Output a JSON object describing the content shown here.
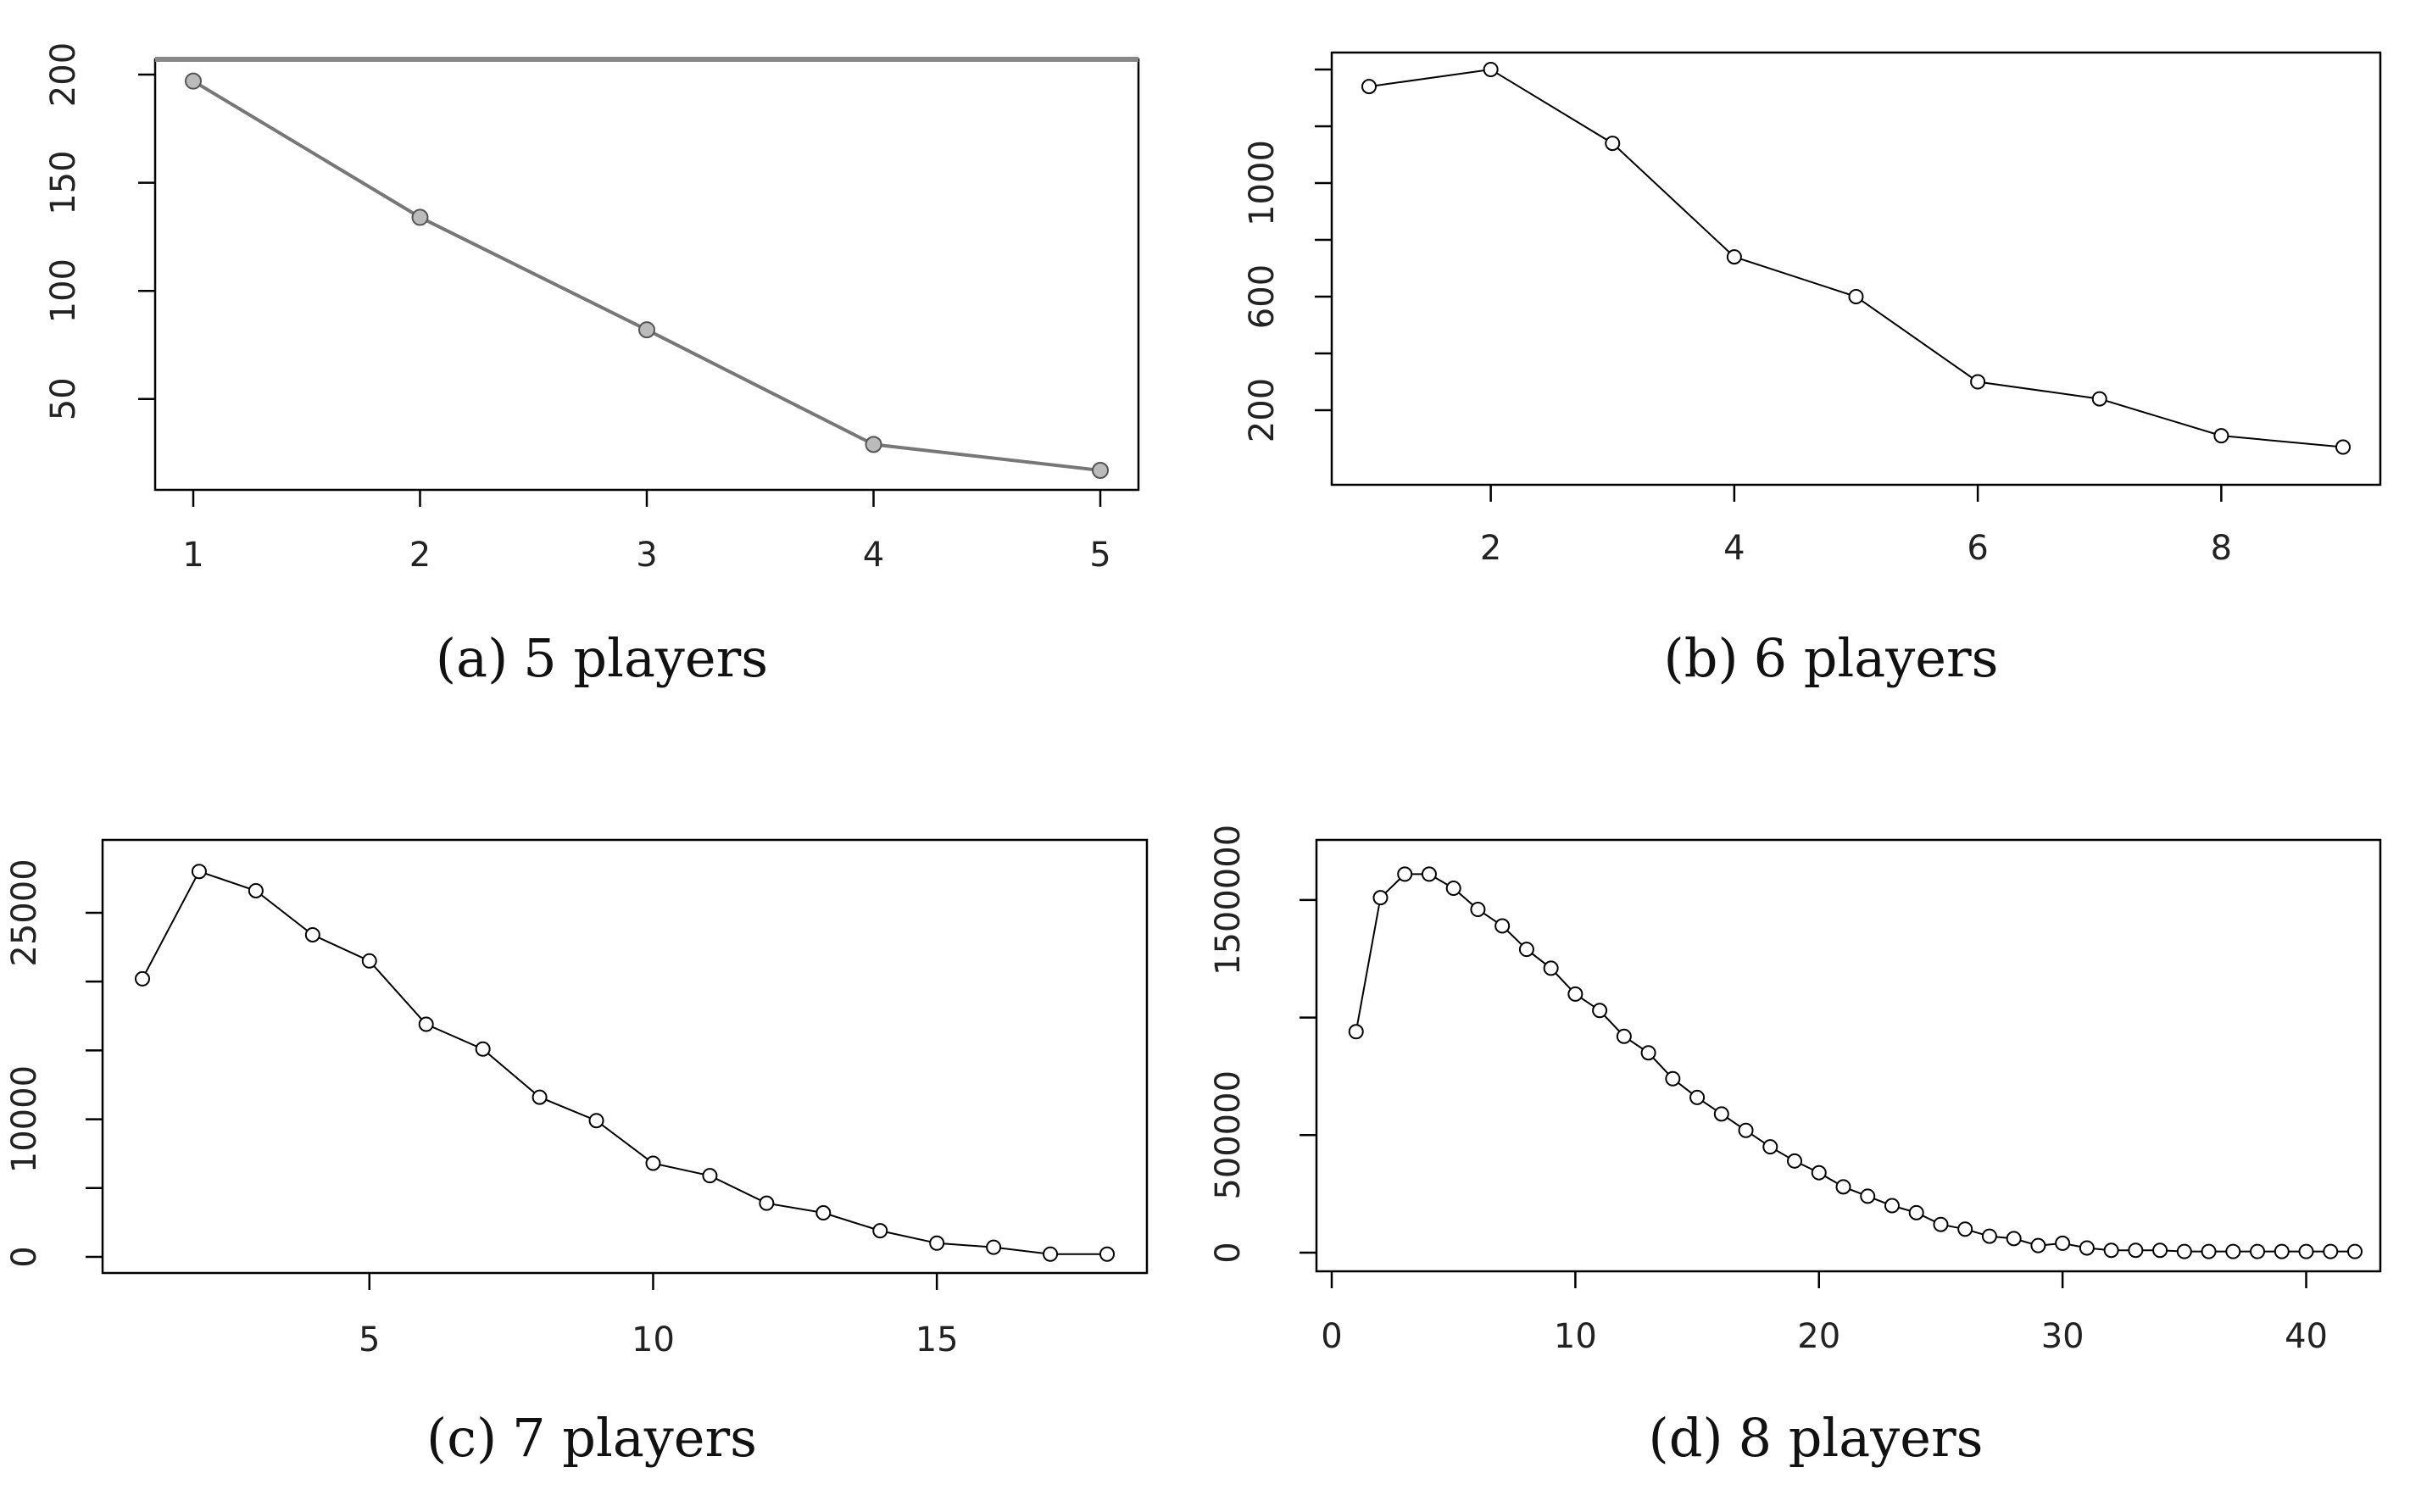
{
  "chart_data": [
    {
      "id": "a",
      "type": "line",
      "markers": "open-circle",
      "line_color": "#777777",
      "caption_label": "(a)",
      "caption_text": "5 players",
      "x": [
        1,
        2,
        3,
        4,
        5
      ],
      "series": [
        {
          "values": [
            197,
            134,
            82,
            29,
            17
          ]
        }
      ],
      "xlim": [
        1,
        5
      ],
      "ylim": [
        17,
        200
      ],
      "xticks": [
        "1",
        "2",
        "3",
        "4",
        "5"
      ],
      "yticks": [
        "50",
        "100",
        "150",
        "200"
      ],
      "ytick_values": [
        50,
        100,
        150,
        200
      ]
    },
    {
      "id": "b",
      "type": "line",
      "markers": "open-circle",
      "line_color": "#000000",
      "caption_label": "(b)",
      "caption_text": "6 players",
      "x": [
        1,
        2,
        3,
        4,
        5,
        6,
        7,
        8,
        9
      ],
      "series": [
        {
          "values": [
            1340,
            1400,
            1140,
            740,
            600,
            300,
            240,
            110,
            70
          ]
        }
      ],
      "xlim": [
        1,
        9
      ],
      "ylim": [
        0,
        1400
      ],
      "xticks": [
        "2",
        "4",
        "6",
        "8"
      ],
      "xtick_values": [
        2,
        4,
        6,
        8
      ],
      "yticks": [
        "200",
        "600",
        "1000"
      ],
      "ytick_values": [
        200,
        600,
        1000
      ],
      "minor_yticks": [
        400,
        800,
        1200,
        1400
      ]
    },
    {
      "id": "c",
      "type": "line",
      "markers": "open-circle",
      "line_color": "#000000",
      "caption_label": "(c)",
      "caption_text": "7 players",
      "x": [
        1,
        2,
        3,
        4,
        5,
        6,
        7,
        8,
        9,
        10,
        11,
        12,
        13,
        14,
        15,
        16,
        17,
        18
      ],
      "series": [
        {
          "values": [
            20200,
            28000,
            26600,
            23400,
            21500,
            16900,
            15100,
            11600,
            9900,
            6800,
            5900,
            3900,
            3200,
            1900,
            1000,
            700,
            200,
            200
          ]
        }
      ],
      "xlim": [
        1,
        18
      ],
      "ylim": [
        0,
        29000
      ],
      "xticks": [
        "5",
        "10",
        "15"
      ],
      "xtick_values": [
        5,
        10,
        15
      ],
      "yticks": [
        "0",
        "10000",
        "25000"
      ],
      "ytick_values": [
        0,
        10000,
        25000
      ],
      "minor_yticks": [
        5000,
        15000,
        20000
      ]
    },
    {
      "id": "d",
      "type": "line",
      "markers": "open-circle",
      "line_color": "#000000",
      "caption_label": "(d)",
      "caption_text": "8 players",
      "x": [
        1,
        2,
        3,
        4,
        5,
        6,
        7,
        8,
        9,
        10,
        11,
        12,
        13,
        14,
        15,
        16,
        17,
        18,
        19,
        20,
        21,
        22,
        23,
        24,
        25,
        26,
        27,
        28,
        29,
        30,
        31,
        32,
        33,
        34,
        35,
        36,
        37,
        38,
        39,
        40,
        41,
        42
      ],
      "series": [
        {
          "values": [
            940000,
            1510000,
            1610000,
            1610000,
            1550000,
            1460000,
            1390000,
            1290000,
            1210000,
            1100000,
            1030000,
            920000,
            850000,
            740000,
            660000,
            590000,
            520000,
            450000,
            390000,
            340000,
            280000,
            240000,
            200000,
            170000,
            120000,
            100000,
            70000,
            60000,
            30000,
            40000,
            20000,
            10000,
            10000,
            10000,
            5000,
            5000,
            5000,
            5000,
            5000,
            5000,
            5000,
            5000
          ]
        }
      ],
      "xlim": [
        0,
        42
      ],
      "ylim": [
        0,
        1680000
      ],
      "xticks": [
        "0",
        "10",
        "20",
        "30",
        "40"
      ],
      "xtick_values": [
        0,
        10,
        20,
        30,
        40
      ],
      "yticks": [
        "0",
        "500000",
        "1500000"
      ],
      "ytick_values": [
        0,
        500000,
        1500000
      ],
      "minor_yticks": [
        1000000
      ]
    }
  ]
}
